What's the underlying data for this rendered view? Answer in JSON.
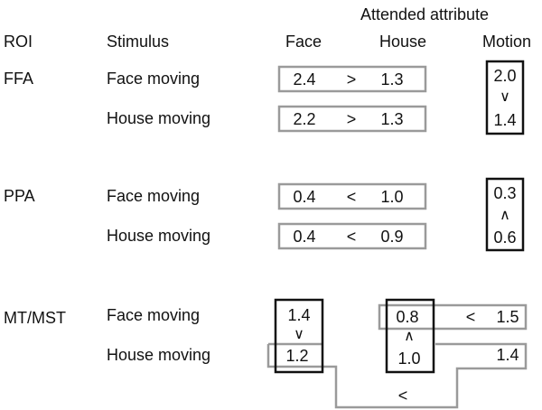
{
  "header": {
    "attended_attribute": "Attended attribute",
    "roi": "ROI",
    "stimulus": "Stimulus",
    "face": "Face",
    "house": "House",
    "motion": "Motion"
  },
  "rows": {
    "ffa": {
      "roi": "FFA",
      "face_moving": {
        "label": "Face moving",
        "face": "2.4",
        "op": ">",
        "house": "1.3"
      },
      "house_moving": {
        "label": "House moving",
        "face": "2.2",
        "op": ">",
        "house": "1.3"
      },
      "motion": {
        "top": "2.0",
        "op": "∨",
        "bottom": "1.4"
      }
    },
    "ppa": {
      "roi": "PPA",
      "face_moving": {
        "label": "Face moving",
        "face": "0.4",
        "op": "<",
        "house": "1.0"
      },
      "house_moving": {
        "label": "House moving",
        "face": "0.4",
        "op": "<",
        "house": "0.9"
      },
      "motion": {
        "top": "0.3",
        "op": "∧",
        "bottom": "0.6"
      }
    },
    "mt": {
      "roi": "MT/MST",
      "face_moving": {
        "label": "Face moving",
        "face": "1.4",
        "house": "0.8",
        "op": "<",
        "motion": "1.5"
      },
      "house_moving": {
        "label": "House moving",
        "face": "1.2",
        "house": "1.0",
        "motion": "1.4"
      },
      "face_col_op": "∨",
      "house_col_op": "∧",
      "bottom_op": "<"
    }
  },
  "colors": {
    "gray_box": "#9a9a9a",
    "black_box": "#111111"
  }
}
